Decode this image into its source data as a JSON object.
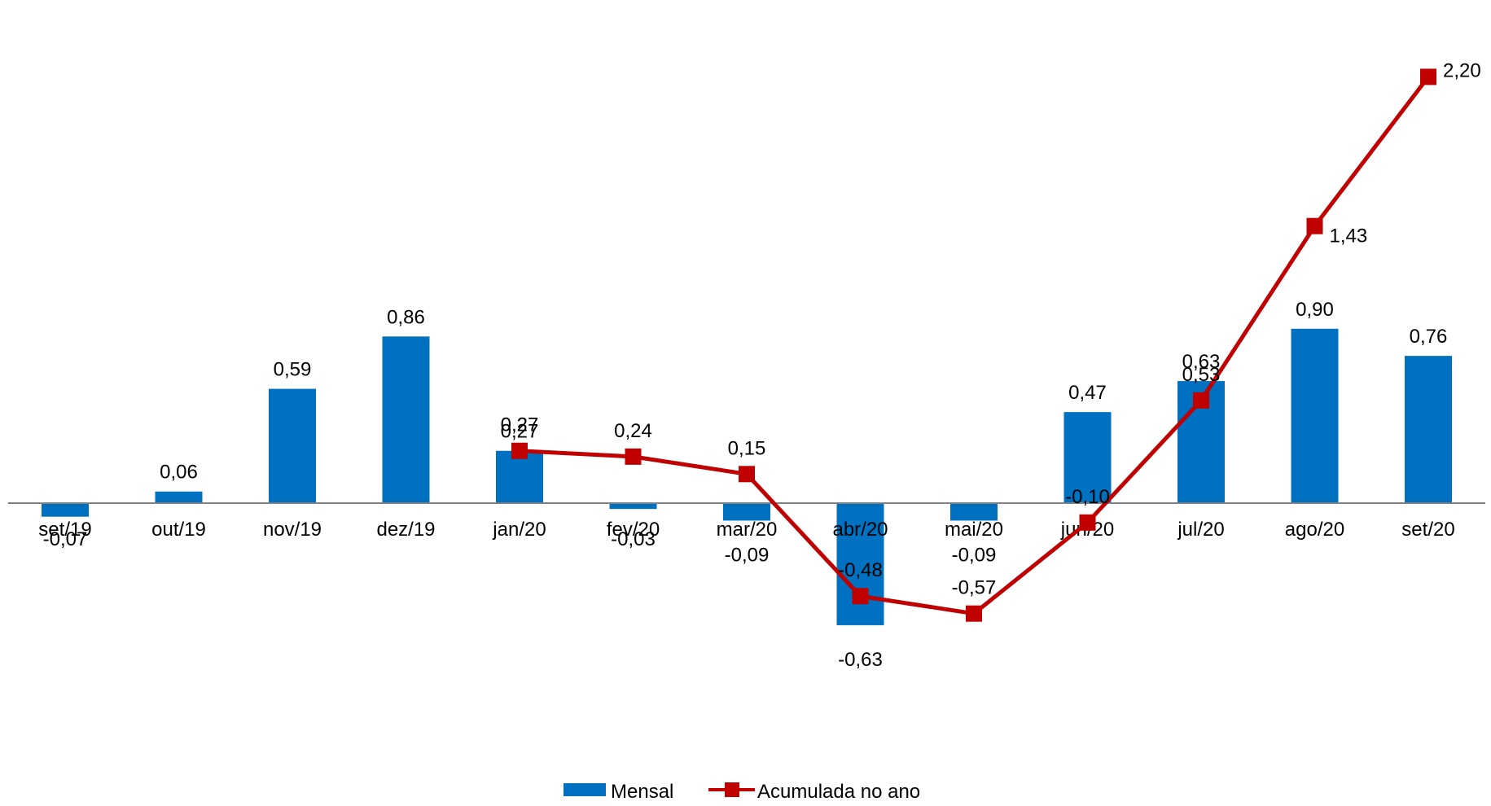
{
  "chart_data": {
    "type": "bar",
    "categories": [
      "set/19",
      "out/19",
      "nov/19",
      "dez/19",
      "jan/20",
      "fev/20",
      "mar/20",
      "abr/20",
      "mai/20",
      "jun/20",
      "jul/20",
      "ago/20",
      "set/20"
    ],
    "series": [
      {
        "name": "Mensal",
        "type": "bar",
        "color": "#0070C0",
        "values": [
          -0.07,
          0.06,
          0.59,
          0.86,
          0.27,
          -0.03,
          -0.09,
          -0.63,
          -0.09,
          0.47,
          0.63,
          0.9,
          0.76
        ],
        "labels": [
          "-0,07",
          "0,06",
          "0,59",
          "0,86",
          "0,27",
          "-0,03",
          "-0,09",
          "-0,63",
          "-0,09",
          "0,47",
          "0,63",
          "0,90",
          "0,76"
        ]
      },
      {
        "name": "Acumulada no ano",
        "type": "line",
        "color": "#C00000",
        "marker": "square",
        "values": [
          null,
          null,
          null,
          null,
          0.27,
          0.24,
          0.15,
          -0.48,
          -0.57,
          -0.1,
          0.53,
          1.43,
          2.2
        ],
        "labels": [
          null,
          null,
          null,
          null,
          "0,27",
          "0,24",
          "0,15",
          "-0,48",
          "-0,57",
          "-0,10",
          "0,53",
          "1,43",
          "2,20"
        ]
      }
    ],
    "title": "",
    "xlabel": "",
    "ylabel": "",
    "ylim": [
      -0.9,
      2.2
    ],
    "grid": false,
    "legend": "bottom-center",
    "axis_color": "#808080"
  },
  "legend": {
    "bar_label": "Mensal",
    "line_label": "Acumulada no ano"
  }
}
